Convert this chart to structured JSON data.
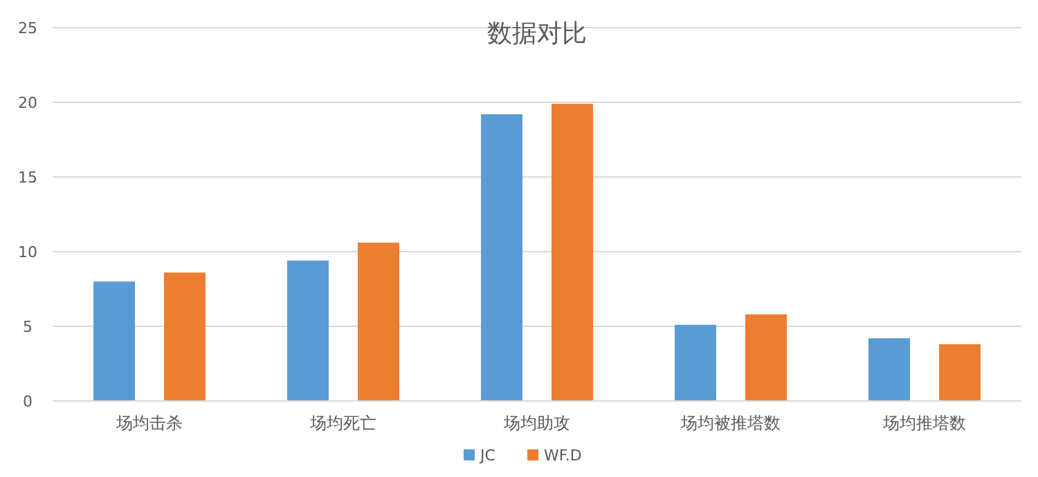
{
  "chart_data": {
    "type": "bar",
    "title": "数据对比",
    "categories": [
      "场均击杀",
      "场均死亡",
      "场均助攻",
      "场均被推塔数",
      "场均推塔数"
    ],
    "series": [
      {
        "name": "JC",
        "color": "#5b9bd5",
        "values": [
          8.0,
          9.4,
          19.2,
          5.1,
          4.2
        ]
      },
      {
        "name": "WF.D",
        "color": "#ed7d31",
        "values": [
          8.6,
          10.6,
          19.9,
          5.8,
          3.8
        ]
      }
    ],
    "ylim": [
      0,
      25
    ],
    "yticks": [
      0,
      5,
      10,
      15,
      20,
      25
    ],
    "grid": "y",
    "legend": "bottom"
  }
}
